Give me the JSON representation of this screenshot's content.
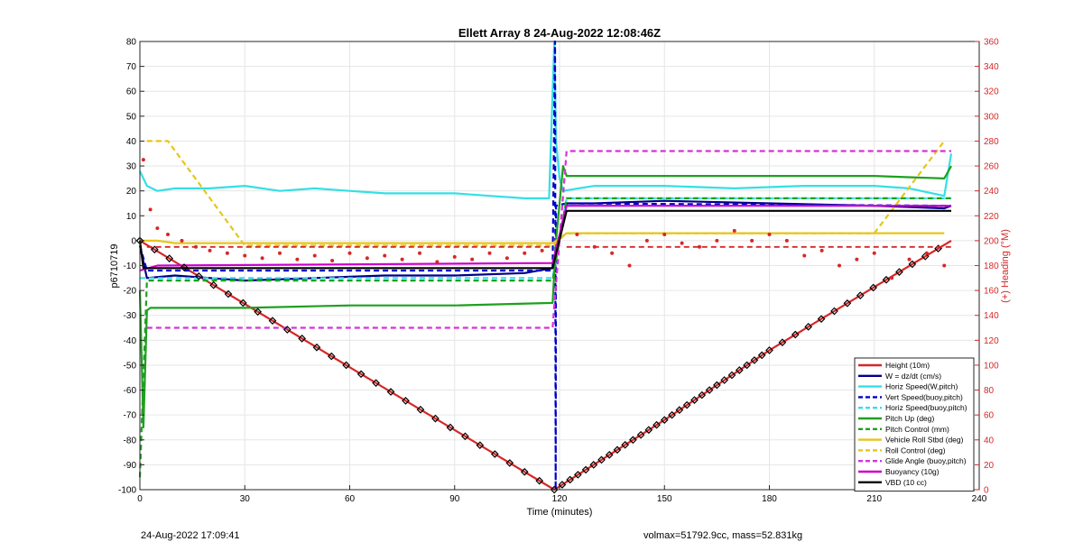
{
  "chart_data": {
    "type": "line",
    "title": "Ellett Array 8 24-Aug-2022 12:08:46Z",
    "xlabel": "Time (minutes)",
    "ylabel_left": "p6710719",
    "ylabel_right": "(+) Heading (°M)",
    "xlim": [
      0,
      240
    ],
    "ylim_left": [
      -100,
      80
    ],
    "ylim_right": [
      0,
      360
    ],
    "x_ticks": [
      0,
      30,
      60,
      90,
      120,
      150,
      180,
      210,
      240
    ],
    "y_left_ticks": [
      80,
      70,
      60,
      50,
      40,
      30,
      20,
      10,
      0,
      -10,
      -20,
      -30,
      -40,
      -50,
      -60,
      -70,
      -80,
      -90,
      -100
    ],
    "y_right_ticks": [
      360,
      340,
      320,
      300,
      280,
      260,
      240,
      220,
      200,
      180,
      160,
      140,
      120,
      100,
      80,
      60,
      40,
      20,
      0
    ],
    "grid": true,
    "legend_position": "bottom-right",
    "series": [
      {
        "name": "Height (10m)",
        "color": "#d62728",
        "style": "solid",
        "axis": "left",
        "x": [
          0,
          59,
          118.5,
          150,
          180,
          232
        ],
        "y": [
          0,
          -50,
          -100,
          -72,
          -44,
          0
        ]
      },
      {
        "name": "W = dz/dt (cm/s)",
        "color": "#00008b",
        "style": "solid",
        "axis": "left",
        "x": [
          0,
          2,
          10,
          30,
          50,
          70,
          90,
          110,
          118,
          122,
          130,
          150,
          180,
          210,
          230,
          232
        ],
        "y": [
          -2,
          -15,
          -14,
          -16,
          -15,
          -14,
          -14,
          -13,
          -11,
          15,
          15,
          16,
          15,
          14,
          13,
          14
        ]
      },
      {
        "name": "Horiz Speed(W,pitch)",
        "color": "#33e0e6",
        "style": "solid",
        "axis": "left",
        "x": [
          0,
          2,
          5,
          10,
          20,
          30,
          40,
          50,
          60,
          70,
          80,
          90,
          100,
          110,
          117,
          118.5,
          119,
          120,
          121,
          130,
          150,
          170,
          190,
          210,
          220,
          230,
          232
        ],
        "y": [
          28,
          22,
          20,
          21,
          21,
          22,
          20,
          21,
          20,
          19,
          19,
          19,
          18,
          17,
          17,
          80,
          40,
          25,
          20,
          22,
          22,
          21,
          22,
          22,
          21,
          18,
          35
        ]
      },
      {
        "name": "Vert Speed(buoy,pitch)",
        "color": "#0000cc",
        "style": "dashed",
        "axis": "left",
        "x": [
          0,
          2,
          118,
          118.7,
          118.9,
          119,
          122,
          232
        ],
        "y": [
          -2,
          -12,
          -12,
          80,
          -100,
          14,
          15,
          14
        ]
      },
      {
        "name": "Horiz Speed(buoy,pitch)",
        "color": "#33e0e6",
        "style": "dashed",
        "axis": "left",
        "x": [
          0,
          118,
          122,
          232
        ],
        "y": [
          -15,
          -15,
          17,
          17
        ]
      },
      {
        "name": "Pitch Up (deg)",
        "color": "#1ea01e",
        "style": "solid",
        "axis": "left",
        "x": [
          0,
          1,
          2,
          3,
          10,
          30,
          60,
          90,
          118,
          119,
          121,
          122,
          150,
          180,
          210,
          230,
          232
        ],
        "y": [
          -20,
          -75,
          -28,
          -27,
          -27,
          -27,
          -26,
          -26,
          -25,
          0,
          30,
          26,
          26,
          26,
          26,
          25,
          30
        ]
      },
      {
        "name": "Pitch Control (mm)",
        "color": "#1ea01e",
        "style": "dashed",
        "axis": "left",
        "x": [
          0,
          1,
          2,
          118,
          122,
          232
        ],
        "y": [
          -95,
          -55,
          -16,
          -16,
          17,
          17
        ]
      },
      {
        "name": "Vehicle Roll Stbd (deg)",
        "color": "#e6c619",
        "style": "solid",
        "axis": "left",
        "x": [
          0,
          5,
          10,
          30,
          60,
          90,
          118,
          122,
          140,
          170,
          200,
          230
        ],
        "y": [
          0,
          0,
          -1,
          -1,
          -1,
          -1,
          -1,
          3,
          3,
          3,
          3,
          3
        ]
      },
      {
        "name": "Roll Control (deg)",
        "color": "#e6c619",
        "style": "dashed",
        "axis": "left",
        "x": [
          2,
          5,
          8,
          30,
          60,
          90,
          118,
          122,
          150,
          180,
          210,
          230
        ],
        "y": [
          40,
          40,
          40,
          -2,
          -2,
          -2,
          -2,
          3,
          3,
          3,
          3,
          40
        ]
      },
      {
        "name": "Glide Angle (buoy,pitch)",
        "color": "#d633d6",
        "style": "dashed",
        "axis": "left",
        "x": [
          2,
          118,
          122,
          232
        ],
        "y": [
          -35,
          -35,
          36,
          36
        ]
      },
      {
        "name": "Buoyancy (10g)",
        "color": "#cc00cc",
        "style": "solid",
        "axis": "left",
        "x": [
          0,
          5,
          118,
          122,
          232
        ],
        "y": [
          -12,
          -10,
          -9,
          14,
          14
        ]
      },
      {
        "name": "VBD (10 cc)",
        "color": "#000000",
        "style": "solid",
        "axis": "left",
        "x": [
          0,
          1,
          118,
          122,
          232
        ],
        "y": [
          0,
          -11,
          -11,
          12,
          12
        ]
      }
    ],
    "heading_dots": {
      "color": "#d62728",
      "axis": "right",
      "mean": 195,
      "x": [
        1,
        3,
        5,
        8,
        12,
        16,
        20,
        25,
        30,
        35,
        40,
        45,
        50,
        55,
        60,
        65,
        70,
        75,
        80,
        85,
        90,
        95,
        100,
        105,
        110,
        115,
        125,
        130,
        135,
        140,
        145,
        150,
        155,
        160,
        165,
        170,
        175,
        180,
        185,
        190,
        195,
        200,
        205,
        210,
        215,
        220,
        225,
        230
      ],
      "y": [
        265,
        225,
        210,
        205,
        200,
        195,
        192,
        190,
        188,
        186,
        190,
        185,
        188,
        184,
        190,
        186,
        188,
        185,
        190,
        183,
        187,
        185,
        190,
        186,
        190,
        192,
        205,
        195,
        190,
        180,
        200,
        205,
        198,
        195,
        200,
        208,
        200,
        205,
        200,
        188,
        192,
        180,
        185,
        190,
        170,
        185,
        190,
        180
      ]
    },
    "legend": [
      "Height (10m)",
      "W = dz/dt (cm/s)",
      "Horiz Speed(W,pitch)",
      "Vert Speed(buoy,pitch)",
      "Horiz Speed(buoy,pitch)",
      "Pitch Up (deg)",
      "Pitch Control (mm)",
      "Vehicle Roll Stbd (deg)",
      "Roll Control (deg)",
      "Glide Angle (buoy,pitch)",
      "Buoyancy (10g)",
      "VBD (10 cc)"
    ]
  },
  "footer": {
    "timestamp": "24-Aug-2022 17:09:41",
    "summary": "volmax=51792.9cc, mass=52.831kg"
  }
}
